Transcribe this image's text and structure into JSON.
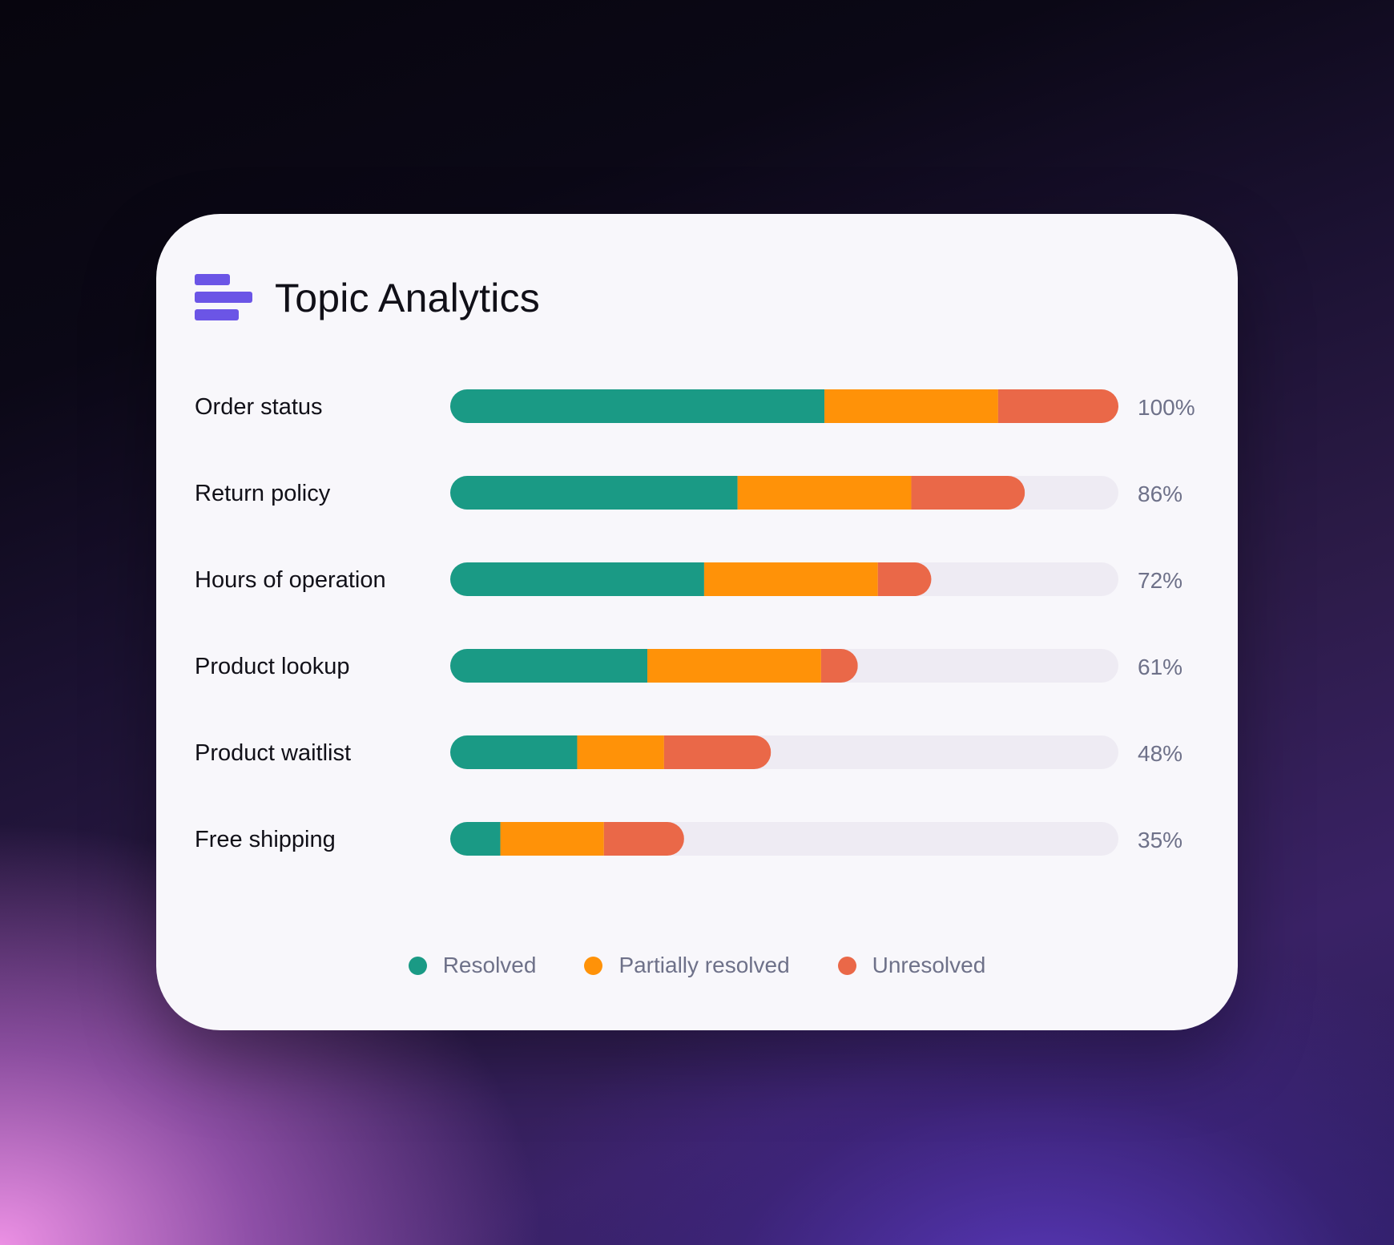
{
  "header": {
    "title": "Topic Analytics",
    "icon": "bar-chart-icon",
    "icon_color": "#6b55e6"
  },
  "chart_data": {
    "type": "bar",
    "orientation": "horizontal",
    "stacked": true,
    "title": "Topic Analytics",
    "categories": [
      "Order status",
      "Return policy",
      "Hours of operation",
      "Product lookup",
      "Product waitlist",
      "Free shipping"
    ],
    "totals": [
      "100%",
      "86%",
      "72%",
      "61%",
      "48%",
      "35%"
    ],
    "total_values": [
      100,
      86,
      72,
      61,
      48,
      35
    ],
    "series": [
      {
        "name": "Resolved",
        "color": "#1a9a85",
        "values": [
          56,
          43,
          38,
          29.5,
          19,
          7.5
        ]
      },
      {
        "name": "Partially resolved",
        "color": "#ff9208",
        "values": [
          26,
          26,
          26,
          26,
          13,
          15.5
        ]
      },
      {
        "name": "Unresolved",
        "color": "#ea6848",
        "values": [
          18,
          17,
          8,
          5.5,
          16,
          12
        ]
      }
    ],
    "xlim": [
      0,
      100
    ],
    "grid": false,
    "legend": "bottom-center",
    "track_color": "#eeebf3"
  }
}
